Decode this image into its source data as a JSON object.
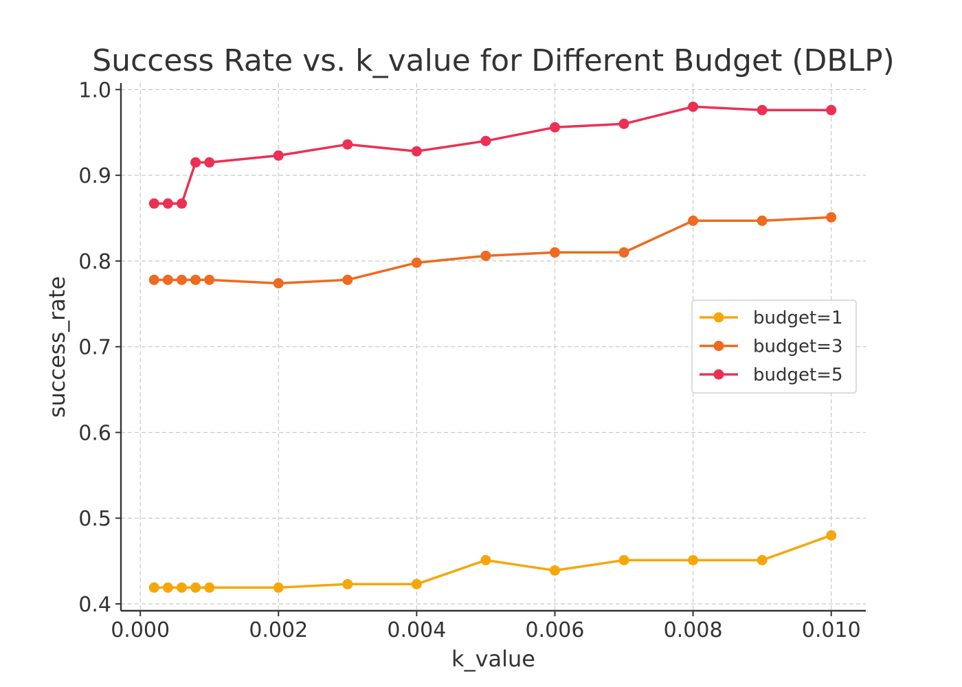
{
  "chart_data": {
    "type": "line",
    "title": "Success Rate vs. k_value for Different Budget (DBLP)",
    "xlabel": "k_value",
    "ylabel": "success_rate",
    "x": [
      0.0002,
      0.0004,
      0.0006,
      0.0008,
      0.001,
      0.002,
      0.003,
      0.004,
      0.005,
      0.006,
      0.007,
      0.008,
      0.009,
      0.01
    ],
    "xlim": [
      -0.00028,
      0.0105
    ],
    "ylim": [
      0.392,
      1.0075
    ],
    "xticks": [
      0,
      0.002,
      0.004,
      0.006,
      0.008,
      0.01
    ],
    "xtick_labels": [
      "0.000",
      "0.002",
      "0.004",
      "0.006",
      "0.008",
      "0.010"
    ],
    "yticks": [
      0.4,
      0.5,
      0.6,
      0.7,
      0.8,
      0.9,
      1.0
    ],
    "ytick_labels": [
      "0.4",
      "0.5",
      "0.6",
      "0.7",
      "0.8",
      "0.9",
      "1.0"
    ],
    "grid": true,
    "legend_position": "center-right",
    "series": [
      {
        "name": "budget=1",
        "color": "#F5A70A",
        "values": [
          0.419,
          0.419,
          0.419,
          0.419,
          0.419,
          0.419,
          0.423,
          0.423,
          0.451,
          0.439,
          0.451,
          0.451,
          0.451,
          0.48
        ]
      },
      {
        "name": "budget=3",
        "color": "#EE6A20",
        "values": [
          0.778,
          0.778,
          0.778,
          0.778,
          0.778,
          0.774,
          0.778,
          0.798,
          0.806,
          0.81,
          0.81,
          0.847,
          0.847,
          0.851
        ]
      },
      {
        "name": "budget=5",
        "color": "#EB3053",
        "values": [
          0.867,
          0.867,
          0.867,
          0.915,
          0.915,
          0.923,
          0.936,
          0.928,
          0.94,
          0.956,
          0.96,
          0.98,
          0.976,
          0.976
        ]
      }
    ]
  }
}
